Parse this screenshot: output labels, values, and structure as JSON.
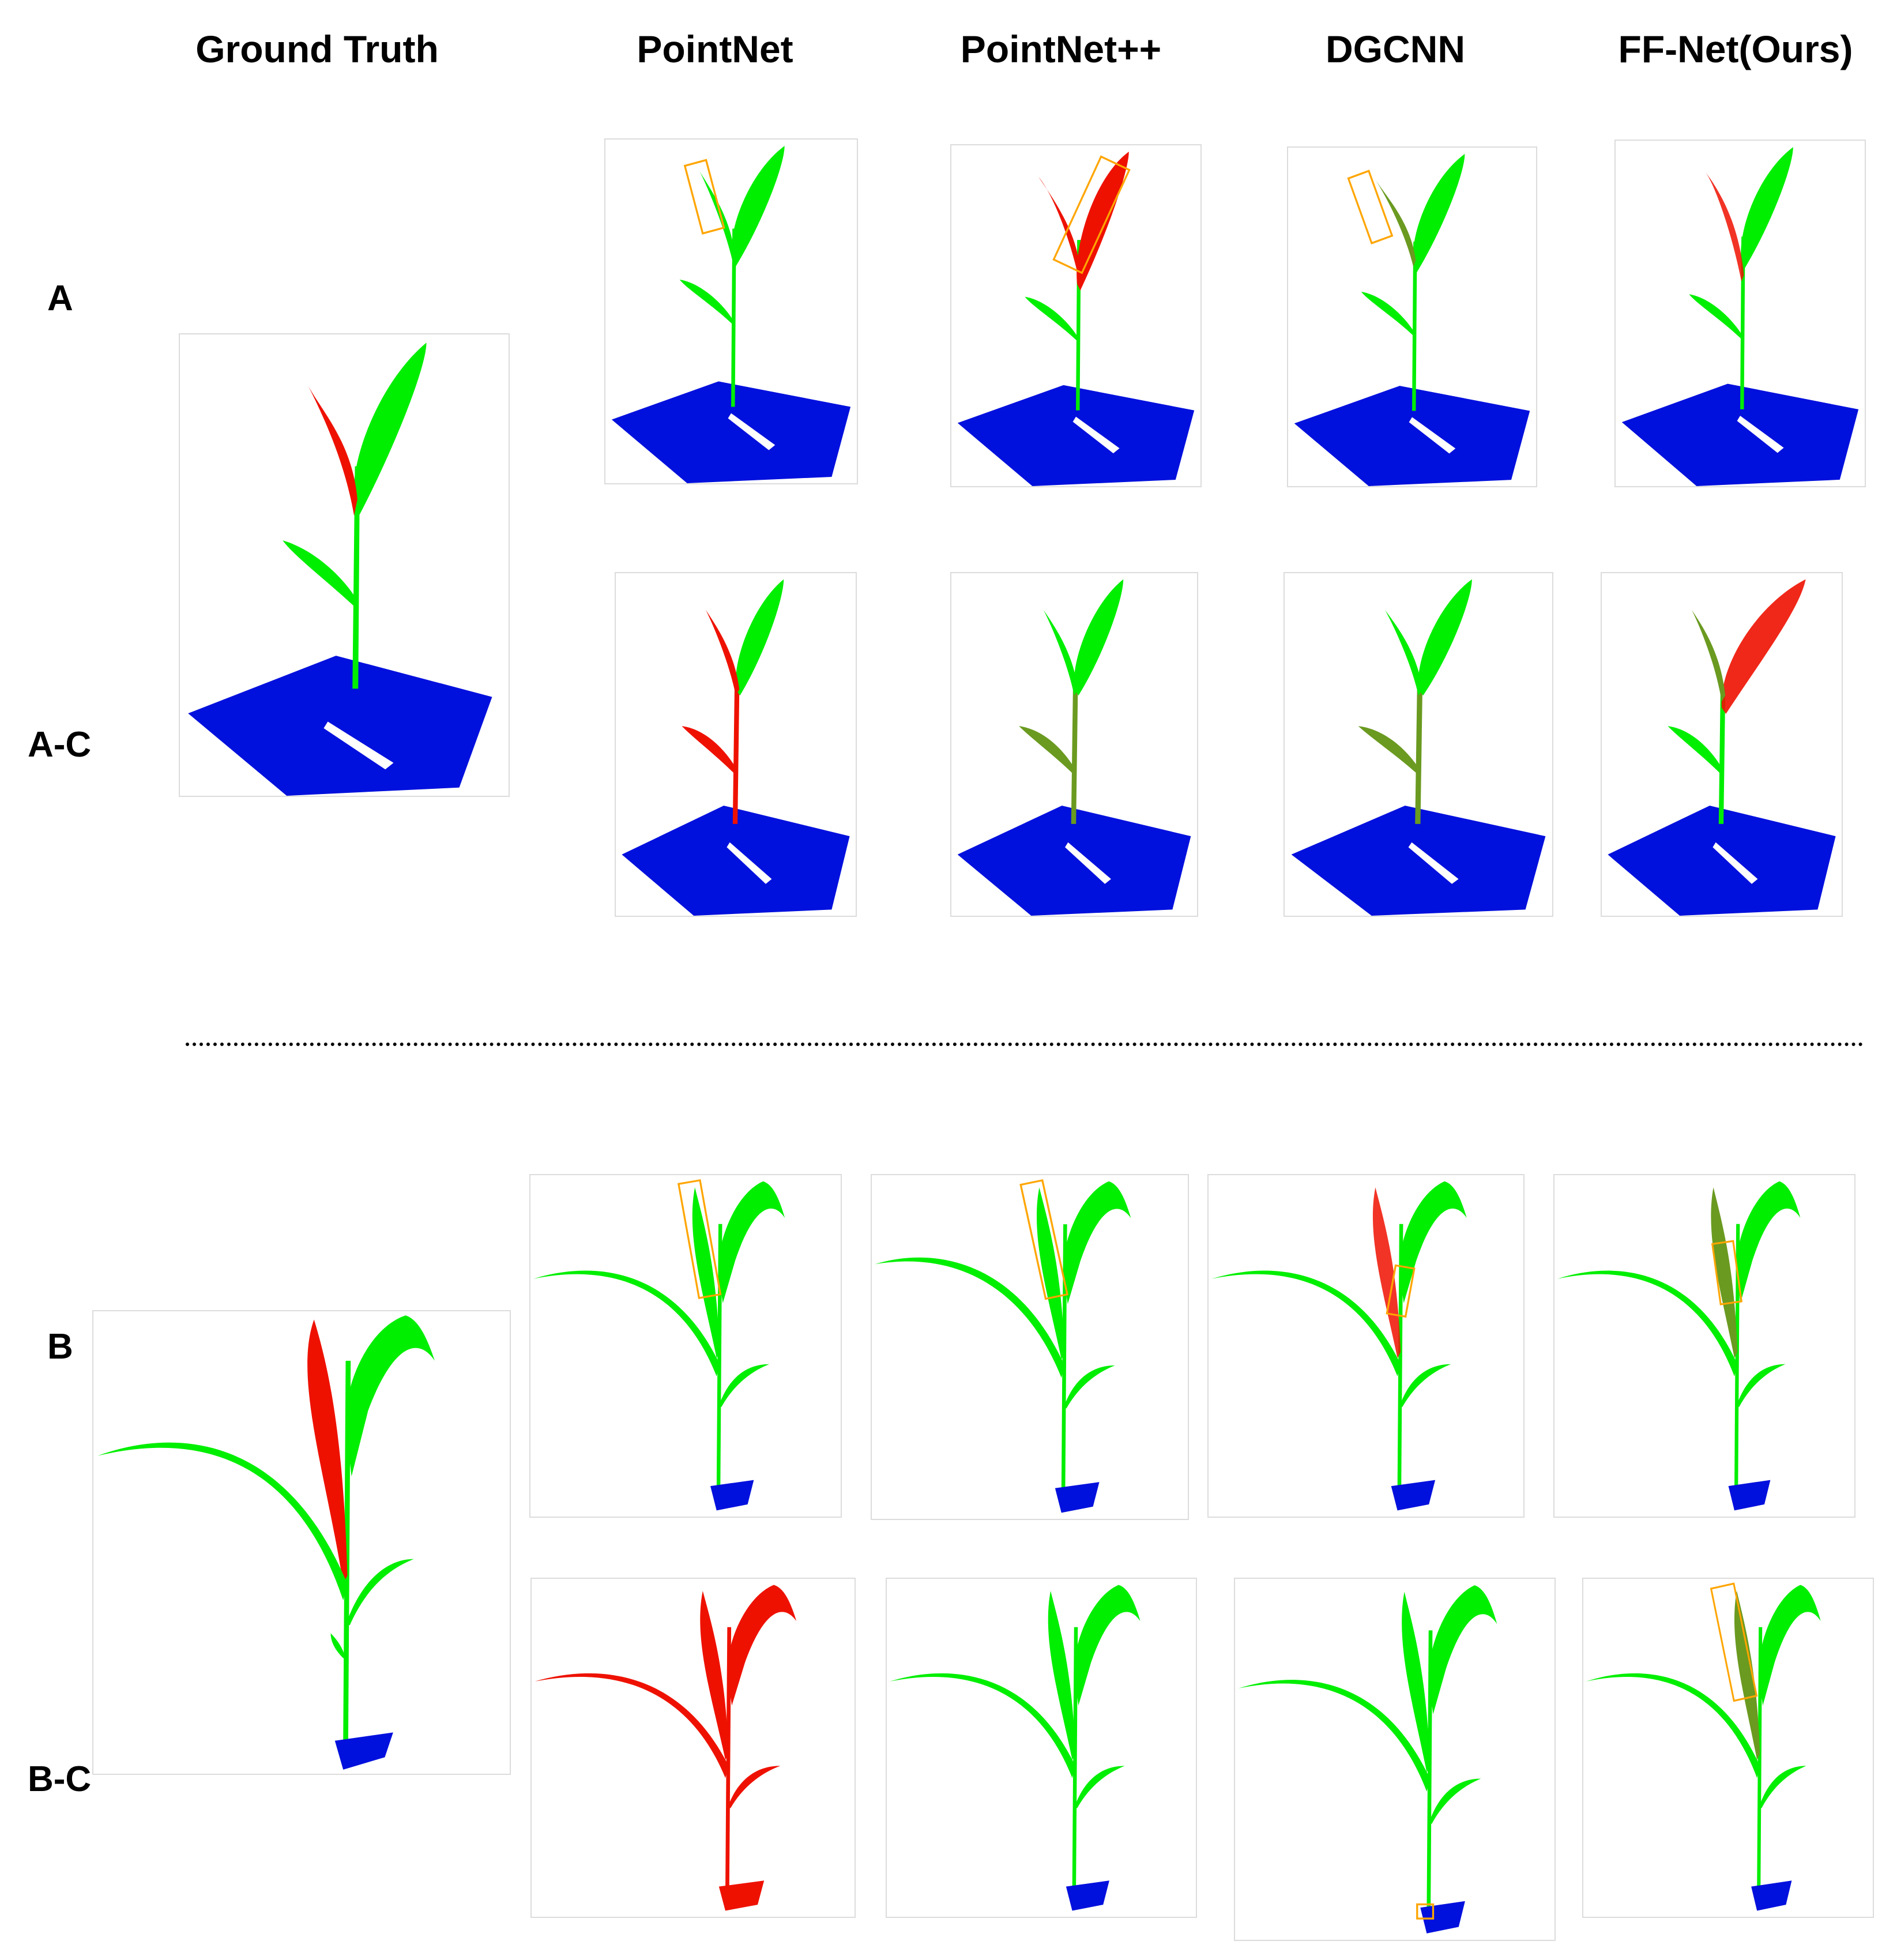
{
  "colors": {
    "stem": "#00ee00",
    "leaf_red": "#ee1100",
    "ground": "#0010dd",
    "highlight_box": "#ffa500",
    "mix": "#6a9a20"
  },
  "columns": [
    "Ground Truth",
    "PointNet",
    "PointNet++",
    "DGCNN",
    "FF-Net(Ours)"
  ],
  "rows": [
    "A",
    "A-C",
    "B",
    "B-C"
  ],
  "panels": [
    {
      "group": "A",
      "col": "Ground Truth",
      "row": "A/A-C",
      "leaf": "red"
    },
    {
      "group": "A",
      "col": "PointNet",
      "row": "A",
      "leaf": "green",
      "box": true
    },
    {
      "group": "A",
      "col": "PointNet++",
      "row": "A",
      "leaf": "red",
      "box": true
    },
    {
      "group": "A",
      "col": "DGCNN",
      "row": "A",
      "leaf": "green",
      "box": true
    },
    {
      "group": "A",
      "col": "FF-Net(Ours)",
      "row": "A",
      "leaf": "mix"
    },
    {
      "group": "A",
      "col": "PointNet",
      "row": "A-C",
      "leaf": "green",
      "stem": "red"
    },
    {
      "group": "A",
      "col": "PointNet++",
      "row": "A-C",
      "leaf": "green",
      "stem": "mix"
    },
    {
      "group": "A",
      "col": "DGCNN",
      "row": "A-C",
      "leaf": "green",
      "stem": "mix"
    },
    {
      "group": "A",
      "col": "FF-Net(Ours)",
      "row": "A-C",
      "leaf": "mix"
    },
    {
      "group": "B",
      "col": "Ground Truth",
      "row": "B/B-C",
      "leaf": "red"
    },
    {
      "group": "B",
      "col": "PointNet",
      "row": "B",
      "leaf": "green",
      "box": true
    },
    {
      "group": "B",
      "col": "PointNet++",
      "row": "B",
      "leaf": "green",
      "box": true
    },
    {
      "group": "B",
      "col": "DGCNN",
      "row": "B",
      "leaf": "mix",
      "box": true
    },
    {
      "group": "B",
      "col": "FF-Net(Ours)",
      "row": "B",
      "leaf": "mix",
      "box": true
    },
    {
      "group": "B",
      "col": "PointNet",
      "row": "B-C",
      "all": "red"
    },
    {
      "group": "B",
      "col": "PointNet++",
      "row": "B-C",
      "leaf": "green"
    },
    {
      "group": "B",
      "col": "DGCNN",
      "row": "B-C",
      "leaf": "green",
      "box": true
    },
    {
      "group": "B",
      "col": "FF-Net(Ours)",
      "row": "B-C",
      "leaf": "mix",
      "box": true
    }
  ]
}
